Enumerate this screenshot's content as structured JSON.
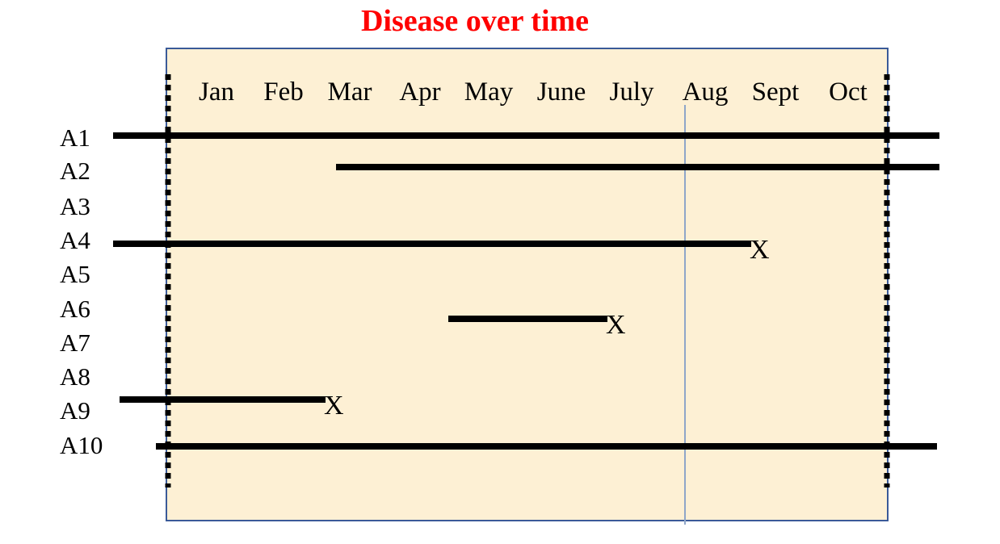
{
  "title": "Disease over time",
  "colors": {
    "title": "#ff0000",
    "panel_fill": "#fdf0d4",
    "panel_border": "#3a5a98",
    "reference_line": "#8fa6c8",
    "bars": "#000000"
  },
  "months": [
    "Jan",
    "Feb",
    "Mar",
    "Apr",
    "May",
    "June",
    "July",
    "Aug",
    "Sept",
    "Oct"
  ],
  "rows": [
    "A1",
    "A2",
    "A3",
    "A4",
    "A5",
    "A6",
    "A7",
    "A8",
    "A9",
    "A10"
  ],
  "reference_month": "Aug",
  "end_marker": "X",
  "segments": [
    {
      "row": "A1",
      "start": "before Jan",
      "end": "after Oct",
      "ends_with_x": false
    },
    {
      "row": "A2",
      "start": "Mar",
      "end": "after Oct",
      "ends_with_x": false
    },
    {
      "row": "A4",
      "start": "before Jan",
      "end": "Sept",
      "ends_with_x": true
    },
    {
      "row": "A6",
      "start": "May",
      "end": "July",
      "ends_with_x": true
    },
    {
      "row": "A9",
      "start": "before Jan",
      "end": "Mar",
      "ends_with_x": true
    },
    {
      "row": "A10",
      "start": "before Jan",
      "end": "after Oct",
      "ends_with_x": false
    }
  ]
}
